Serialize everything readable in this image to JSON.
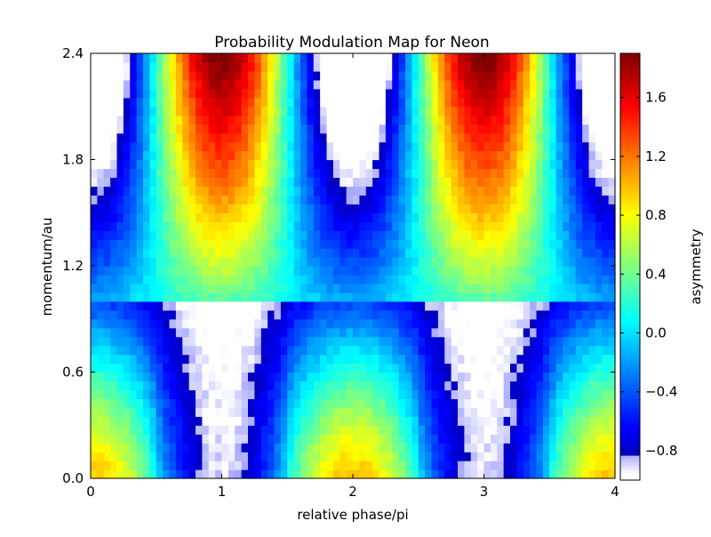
{
  "chart_data": {
    "type": "heatmap",
    "title": "Probability Modulation Map for Neon",
    "xlabel": "relative phase/pi",
    "ylabel": "momentum/au",
    "colorbar_label": "asymmetry",
    "colormap": "jet",
    "xlim": [
      0,
      4
    ],
    "ylim": [
      0,
      2.4
    ],
    "clim": [
      -1.0,
      1.9
    ],
    "x_ticks": [
      0,
      1,
      2,
      3,
      4
    ],
    "x_tick_labels": [
      "0",
      "1",
      "2",
      "3",
      "4"
    ],
    "y_ticks": [
      0.0,
      0.6,
      1.2,
      1.8,
      2.4
    ],
    "y_tick_labels": [
      "0.0",
      "0.6",
      "1.2",
      "1.8",
      "2.4"
    ],
    "colorbar_ticks": [
      -0.8,
      -0.4,
      0.0,
      0.4,
      0.8,
      1.2,
      1.6
    ],
    "colorbar_tick_labels": [
      "−0.8",
      "−0.4",
      "0.0",
      "0.4",
      "0.8",
      "1.2",
      "1.6"
    ],
    "grid": {
      "x_bins": 80,
      "y_bins": 48,
      "x_range": [
        0,
        4
      ],
      "y_range": [
        0,
        2.4
      ]
    },
    "pattern": {
      "period_in_phase": 2,
      "high_asymmetry_phase_at_high_momentum": [
        1,
        3
      ],
      "peak_asymmetry_at_high_momentum": 1.85,
      "high_asymmetry_phase_at_low_momentum": [
        0,
        2,
        4
      ],
      "low_momentum_asymmetry_near_even_phase": 0.9,
      "white_below_colorbar_minimum_regions": [
        {
          "phase": 1,
          "momentum": 0.1
        },
        {
          "phase": 3,
          "momentum": 0.1
        },
        {
          "phase": 0,
          "momentum": 2.3
        },
        {
          "phase": 2,
          "momentum": 2.3
        },
        {
          "phase": 4,
          "momentum": 2.3
        }
      ],
      "flat_band_momentum": 1.0,
      "flat_band_asymmetry": 0.1
    }
  }
}
